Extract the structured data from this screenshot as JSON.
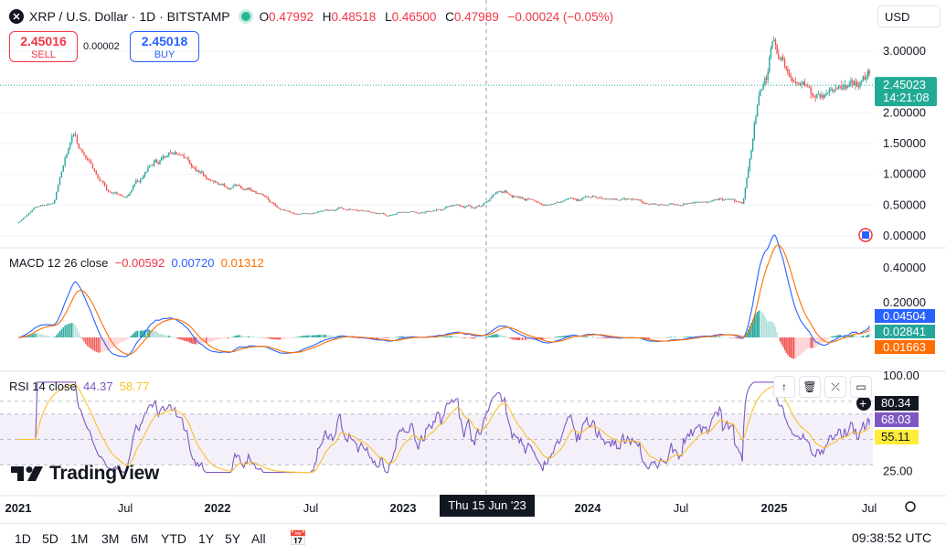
{
  "header": {
    "logo_glyph": "✕",
    "title": "XRP / U.S. Dollar · 1D · BITSTAMP",
    "ohlc": [
      {
        "k": "O",
        "v": "0.47992"
      },
      {
        "k": "H",
        "v": "0.48518"
      },
      {
        "k": "L",
        "v": "0.46500"
      },
      {
        "k": "C",
        "v": "0.47989"
      }
    ],
    "change": "−0.00024 (−0.05%)"
  },
  "trade": {
    "sell_price": "2.45016",
    "sell_label": "SELL",
    "spread": "0.00002",
    "buy_price": "2.45018",
    "buy_label": "BUY"
  },
  "currency": "USD",
  "indicators": {
    "macd": {
      "label": "MACD 12 26 close",
      "v1": "−0.00592",
      "v2": "0.00720",
      "v3": "0.01312"
    },
    "rsi": {
      "label": "RSI 14 close",
      "v1": "44.37",
      "v2": "58.77"
    }
  },
  "toolbar_icons": [
    "arrow-up-icon",
    "trash-icon",
    "collapse-icon",
    "maximize-icon"
  ],
  "crosshair_date": "Thu 15 Jun '23",
  "timeframes": [
    "1D",
    "5D",
    "1M",
    "3M",
    "6M",
    "YTD",
    "1Y",
    "5Y",
    "All"
  ],
  "clock": "09:38:52 UTC",
  "brand": "TradingView",
  "colors": {
    "up": "#26a69a",
    "down": "#ef5350",
    "macd": "#2962ff",
    "signal": "#ff6d00",
    "rsi": "#7e57c2",
    "rsi_ma": "#fbc02d",
    "price_tag": "#22ab94",
    "sell": "#f23645",
    "buy": "#2962ff"
  },
  "chart_data": [
    {
      "type": "candlestick",
      "title": "XRP / U.S. Dollar · 1D · BITSTAMP",
      "x_ticks": [
        "2021",
        "Jul",
        "2022",
        "Jul",
        "2023",
        "Jul",
        "2024",
        "Jul",
        "2025",
        "Jul"
      ],
      "y_ticks": [
        "3.00000",
        "2.50000",
        "2.00000",
        "1.50000",
        "1.00000",
        "0.50000",
        "0.00000"
      ],
      "ylim": [
        0,
        3.5
      ],
      "last_price": "2.45023",
      "countdown": "14:21:08",
      "approx_close_points": [
        {
          "x": "2021-01",
          "y": 0.22
        },
        {
          "x": "2021-02",
          "y": 0.45
        },
        {
          "x": "2021-03",
          "y": 0.55
        },
        {
          "x": "2021-04",
          "y": 1.65
        },
        {
          "x": "2021-05",
          "y": 1.2
        },
        {
          "x": "2021-06",
          "y": 0.7
        },
        {
          "x": "2021-07",
          "y": 0.6
        },
        {
          "x": "2021-09",
          "y": 1.3
        },
        {
          "x": "2021-11",
          "y": 1.2
        },
        {
          "x": "2022-01",
          "y": 0.8
        },
        {
          "x": "2022-03",
          "y": 0.8
        },
        {
          "x": "2022-05",
          "y": 0.42
        },
        {
          "x": "2022-07",
          "y": 0.35
        },
        {
          "x": "2022-09",
          "y": 0.45
        },
        {
          "x": "2022-12",
          "y": 0.35
        },
        {
          "x": "2023-02",
          "y": 0.38
        },
        {
          "x": "2023-04",
          "y": 0.5
        },
        {
          "x": "2023-06",
          "y": 0.48
        },
        {
          "x": "2023-07",
          "y": 0.75
        },
        {
          "x": "2023-10",
          "y": 0.5
        },
        {
          "x": "2024-01",
          "y": 0.62
        },
        {
          "x": "2024-03",
          "y": 0.6
        },
        {
          "x": "2024-06",
          "y": 0.48
        },
        {
          "x": "2024-09",
          "y": 0.58
        },
        {
          "x": "2024-11",
          "y": 0.55
        },
        {
          "x": "2024-12",
          "y": 2.4
        },
        {
          "x": "2025-01",
          "y": 3.1
        },
        {
          "x": "2025-03",
          "y": 2.3
        },
        {
          "x": "2025-05",
          "y": 2.3
        },
        {
          "x": "2025-07",
          "y": 2.45
        }
      ]
    },
    {
      "type": "line",
      "title": "MACD 12 26 close",
      "y_ticks": [
        "0.40000",
        "0.20000"
      ],
      "tags": [
        "0.04504",
        "0.02841",
        "0.01663"
      ],
      "series": [
        {
          "name": "MACD"
        },
        {
          "name": "Signal"
        },
        {
          "name": "Histogram"
        }
      ]
    },
    {
      "type": "line",
      "title": "RSI 14 close",
      "y_ticks": [
        "100.00",
        "25.00"
      ],
      "tags": [
        "80.34",
        "68.03",
        "55.11"
      ],
      "bands": [
        70,
        30
      ]
    }
  ]
}
